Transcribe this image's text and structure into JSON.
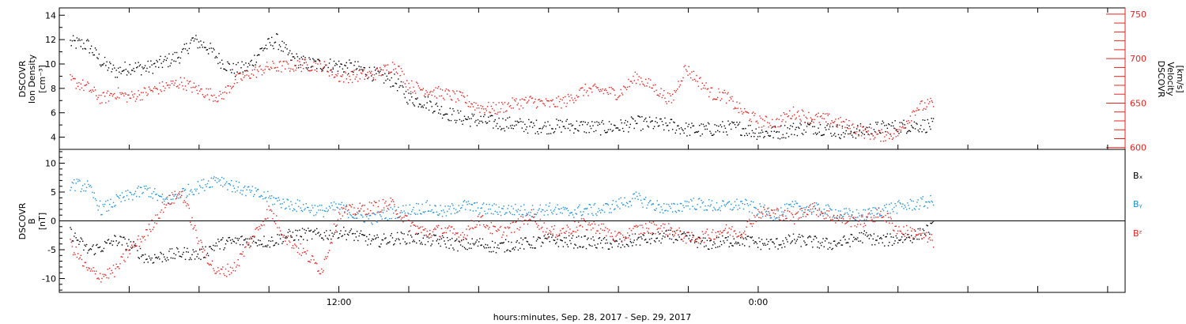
{
  "colors": {
    "black": "#000000",
    "red": "#e8231f",
    "blue": "#1a8fdc"
  },
  "xlabel": "hours:minutes, Sep. 28, 2017 - Sep. 29, 2017",
  "x_ticks": [
    {
      "t": 12,
      "label": "12:00"
    },
    {
      "t": 24,
      "label": "0:00"
    }
  ],
  "chart_data": [
    {
      "type": "scatter",
      "ylabel": [
        "DSCOVR",
        "Ion Density",
        "[cm⁻³]"
      ],
      "ylabel_right": [
        "DSCOVR",
        "Velocity",
        "[km/s]"
      ],
      "xlim": [
        4,
        34.5
      ],
      "ylim": [
        3,
        14.6
      ],
      "yticks": [
        4,
        6,
        8,
        10,
        12,
        14
      ],
      "ylim_right": [
        598,
        757
      ],
      "yticks_right": [
        600,
        650,
        700,
        750
      ],
      "series": [
        {
          "color": "black",
          "axis": "left",
          "values": [
            [
              4.3,
              11.8
            ],
            [
              4.8,
              11.6
            ],
            [
              5.2,
              10.2
            ],
            [
              5.6,
              9.4
            ],
            [
              6.0,
              9.8
            ],
            [
              6.5,
              9.7
            ],
            [
              7.0,
              10.2
            ],
            [
              7.5,
              10.8
            ],
            [
              7.8,
              12.0
            ],
            [
              8.2,
              11.5
            ],
            [
              8.6,
              10.3
            ],
            [
              9.0,
              9.5
            ],
            [
              9.4,
              9.8
            ],
            [
              9.8,
              11.3
            ],
            [
              10.2,
              12.0
            ],
            [
              10.6,
              10.6
            ],
            [
              11.0,
              10.1
            ],
            [
              11.5,
              10.0
            ],
            [
              12.0,
              9.9
            ],
            [
              12.5,
              9.7
            ],
            [
              13.0,
              9.2
            ],
            [
              13.3,
              8.9
            ],
            [
              13.6,
              8.6
            ],
            [
              14.0,
              7.2
            ],
            [
              14.5,
              6.9
            ],
            [
              15.0,
              6.1
            ],
            [
              15.5,
              5.6
            ],
            [
              16.0,
              5.4
            ],
            [
              16.5,
              5.2
            ],
            [
              17.0,
              5.1
            ],
            [
              17.5,
              4.9
            ],
            [
              18.0,
              4.9
            ],
            [
              18.5,
              5.0
            ],
            [
              19.0,
              4.9
            ],
            [
              19.5,
              4.8
            ],
            [
              20.0,
              4.9
            ],
            [
              20.5,
              5.2
            ],
            [
              21.0,
              5.1
            ],
            [
              21.5,
              5.0
            ],
            [
              21.9,
              4.7
            ],
            [
              22.3,
              4.6
            ],
            [
              22.7,
              4.7
            ],
            [
              23.0,
              4.8
            ],
            [
              23.5,
              4.8
            ],
            [
              24.0,
              4.4
            ],
            [
              24.5,
              4.4
            ],
            [
              25.0,
              4.7
            ],
            [
              25.5,
              4.9
            ],
            [
              26.0,
              4.7
            ],
            [
              26.5,
              4.4
            ],
            [
              27.0,
              4.6
            ],
            [
              27.5,
              4.8
            ],
            [
              28.0,
              4.9
            ],
            [
              28.5,
              5.0
            ],
            [
              29.0,
              5.0
            ]
          ]
        },
        {
          "color": "red",
          "axis": "right",
          "values": [
            [
              4.3,
              676
            ],
            [
              4.8,
              668
            ],
            [
              5.2,
              655
            ],
            [
              5.6,
              662
            ],
            [
              6.0,
              657
            ],
            [
              6.5,
              663
            ],
            [
              7.0,
              669
            ],
            [
              7.5,
              674
            ],
            [
              7.8,
              668
            ],
            [
              8.2,
              662
            ],
            [
              8.6,
              657
            ],
            [
              9.0,
              675
            ],
            [
              9.4,
              683
            ],
            [
              10.0,
              691
            ],
            [
              10.5,
              692
            ],
            [
              11.0,
              693
            ],
            [
              11.5,
              693
            ],
            [
              12.0,
              680
            ],
            [
              12.5,
              681
            ],
            [
              13.0,
              683
            ],
            [
              13.3,
              688
            ],
            [
              13.6,
              694
            ],
            [
              14.0,
              670
            ],
            [
              14.5,
              665
            ],
            [
              15.0,
              661
            ],
            [
              15.5,
              656
            ],
            [
              16.0,
              646
            ],
            [
              16.5,
              644
            ],
            [
              17.0,
              650
            ],
            [
              17.5,
              653
            ],
            [
              18.0,
              649
            ],
            [
              18.5,
              653
            ],
            [
              19.0,
              665
            ],
            [
              19.5,
              665
            ],
            [
              20.0,
              661
            ],
            [
              20.5,
              680
            ],
            [
              21.0,
              668
            ],
            [
              21.5,
              653
            ],
            [
              21.9,
              690
            ],
            [
              22.3,
              675
            ],
            [
              22.7,
              660
            ],
            [
              23.0,
              660
            ],
            [
              23.5,
              642
            ],
            [
              24.0,
              630
            ],
            [
              24.5,
              628
            ],
            [
              25.0,
              640
            ],
            [
              25.5,
              634
            ],
            [
              26.0,
              632
            ],
            [
              26.5,
              626
            ],
            [
              27.0,
              618
            ],
            [
              27.5,
              614
            ],
            [
              28.0,
              617
            ],
            [
              28.5,
              645
            ],
            [
              29.0,
              650
            ]
          ]
        }
      ]
    },
    {
      "type": "scatter",
      "ylabel": [
        "DSCOVR",
        "B",
        "[nT]"
      ],
      "xlim": [
        4,
        34.5
      ],
      "ylim": [
        -12.4,
        12.4
      ],
      "yticks": [
        -10,
        -5,
        0,
        5,
        10
      ],
      "zero_line": true,
      "legend": [
        "Bₓ",
        "Bᵧ",
        "Bᶻ"
      ],
      "series": [
        {
          "name": "Bₓ",
          "color": "black",
          "values": [
            [
              4.3,
              -2.0
            ],
            [
              4.8,
              -5.0
            ],
            [
              5.2,
              -4.5
            ],
            [
              5.6,
              -3.2
            ],
            [
              6.0,
              -4.0
            ],
            [
              6.5,
              -6.5
            ],
            [
              7.0,
              -6.0
            ],
            [
              7.5,
              -5.5
            ],
            [
              8.0,
              -5.8
            ],
            [
              8.5,
              -4.0
            ],
            [
              9.0,
              -3.5
            ],
            [
              9.5,
              -3.2
            ],
            [
              10.0,
              -3.6
            ],
            [
              10.5,
              -2.5
            ],
            [
              11.0,
              -2.2
            ],
            [
              11.5,
              -2.4
            ],
            [
              12.0,
              -1.8
            ],
            [
              12.5,
              -2.5
            ],
            [
              13.0,
              -3.5
            ],
            [
              13.5,
              -3.0
            ],
            [
              14.0,
              -2.8
            ],
            [
              14.5,
              -3.2
            ],
            [
              15.0,
              -3.5
            ],
            [
              15.5,
              -4.2
            ],
            [
              16.0,
              -3.8
            ],
            [
              16.5,
              -4.5
            ],
            [
              17.0,
              -4.0
            ],
            [
              17.5,
              -3.8
            ],
            [
              18.0,
              -3.2
            ],
            [
              18.5,
              -3.5
            ],
            [
              19.0,
              -3.6
            ],
            [
              19.5,
              -3.8
            ],
            [
              20.0,
              -4.0
            ],
            [
              20.5,
              -3.2
            ],
            [
              21.0,
              -3.0
            ],
            [
              21.5,
              -2.5
            ],
            [
              22.0,
              -3.0
            ],
            [
              22.5,
              -4.0
            ],
            [
              23.0,
              -3.5
            ],
            [
              23.5,
              -3.2
            ],
            [
              24.0,
              -3.8
            ],
            [
              24.5,
              -3.9
            ],
            [
              25.0,
              -3.2
            ],
            [
              25.5,
              -3.5
            ],
            [
              26.0,
              -4.0
            ],
            [
              26.5,
              -3.5
            ],
            [
              27.0,
              -2.6
            ],
            [
              27.5,
              -3.4
            ],
            [
              28.0,
              -3.0
            ],
            [
              28.5,
              -2.5
            ],
            [
              29.0,
              -1.0
            ]
          ]
        },
        {
          "name": "Bᵧ",
          "color": "blue",
          "values": [
            [
              4.3,
              6.5
            ],
            [
              4.8,
              6.0
            ],
            [
              5.2,
              2.0
            ],
            [
              5.6,
              3.5
            ],
            [
              6.0,
              4.5
            ],
            [
              6.5,
              5.5
            ],
            [
              7.0,
              3.5
            ],
            [
              7.5,
              5.0
            ],
            [
              8.0,
              6.0
            ],
            [
              8.5,
              7.5
            ],
            [
              9.0,
              6.0
            ],
            [
              9.5,
              5.0
            ],
            [
              10.0,
              4.0
            ],
            [
              10.5,
              3.0
            ],
            [
              11.0,
              2.5
            ],
            [
              11.5,
              1.8
            ],
            [
              12.0,
              2.5
            ],
            [
              12.5,
              1.0
            ],
            [
              13.0,
              0.5
            ],
            [
              13.5,
              1.5
            ],
            [
              14.0,
              2.0
            ],
            [
              14.5,
              2.5
            ],
            [
              15.0,
              1.5
            ],
            [
              15.5,
              2.8
            ],
            [
              16.0,
              2.2
            ],
            [
              16.5,
              2.0
            ],
            [
              17.0,
              2.0
            ],
            [
              17.5,
              1.8
            ],
            [
              18.0,
              2.2
            ],
            [
              18.5,
              1.5
            ],
            [
              19.0,
              2.0
            ],
            [
              19.5,
              2.0
            ],
            [
              20.0,
              3.0
            ],
            [
              20.5,
              4.0
            ],
            [
              21.0,
              2.8
            ],
            [
              21.5,
              2.0
            ],
            [
              22.0,
              3.2
            ],
            [
              22.5,
              2.8
            ],
            [
              23.0,
              2.5
            ],
            [
              23.5,
              3.0
            ],
            [
              24.0,
              2.0
            ],
            [
              24.5,
              1.2
            ],
            [
              25.0,
              2.5
            ],
            [
              25.5,
              2.2
            ],
            [
              26.0,
              1.8
            ],
            [
              26.5,
              1.2
            ],
            [
              27.0,
              1.0
            ],
            [
              27.5,
              2.0
            ],
            [
              28.0,
              2.5
            ],
            [
              28.5,
              3.0
            ],
            [
              29.0,
              3.5
            ]
          ]
        },
        {
          "name": "Bᶻ",
          "color": "red",
          "values": [
            [
              4.3,
              -4.0
            ],
            [
              4.8,
              -8.5
            ],
            [
              5.2,
              -9.5
            ],
            [
              5.6,
              -8.5
            ],
            [
              6.0,
              -5.0
            ],
            [
              6.5,
              -2.0
            ],
            [
              7.0,
              3.0
            ],
            [
              7.5,
              5.0
            ],
            [
              8.0,
              -4.0
            ],
            [
              8.5,
              -9.0
            ],
            [
              9.0,
              -8.0
            ],
            [
              9.5,
              -3.0
            ],
            [
              10.0,
              2.0
            ],
            [
              10.5,
              -3.0
            ],
            [
              11.0,
              -5.5
            ],
            [
              11.5,
              -8.5
            ],
            [
              12.0,
              1.5
            ],
            [
              12.5,
              2.0
            ],
            [
              13.0,
              2.5
            ],
            [
              13.5,
              3.0
            ],
            [
              14.0,
              -0.5
            ],
            [
              14.5,
              -2.0
            ],
            [
              15.0,
              -1.5
            ],
            [
              15.5,
              -2.5
            ],
            [
              16.0,
              0.5
            ],
            [
              16.5,
              -2.0
            ],
            [
              17.0,
              -1.0
            ],
            [
              17.5,
              1.0
            ],
            [
              18.0,
              -2.0
            ],
            [
              18.5,
              -1.5
            ],
            [
              19.0,
              -0.5
            ],
            [
              19.5,
              -1.2
            ],
            [
              20.0,
              -3.0
            ],
            [
              20.5,
              -1.5
            ],
            [
              21.0,
              -1.0
            ],
            [
              21.5,
              -1.5
            ],
            [
              22.0,
              -3.0
            ],
            [
              22.5,
              -2.5
            ],
            [
              23.0,
              -1.5
            ],
            [
              23.5,
              -2.0
            ],
            [
              24.0,
              1.5
            ],
            [
              24.5,
              1.5
            ],
            [
              25.0,
              0.5
            ],
            [
              25.5,
              2.5
            ],
            [
              26.0,
              1.0
            ],
            [
              26.5,
              0.2
            ],
            [
              27.0,
              0.0
            ],
            [
              27.5,
              1.5
            ],
            [
              28.0,
              -1.5
            ],
            [
              28.5,
              -2.0
            ],
            [
              29.0,
              -3.5
            ]
          ]
        }
      ]
    }
  ]
}
